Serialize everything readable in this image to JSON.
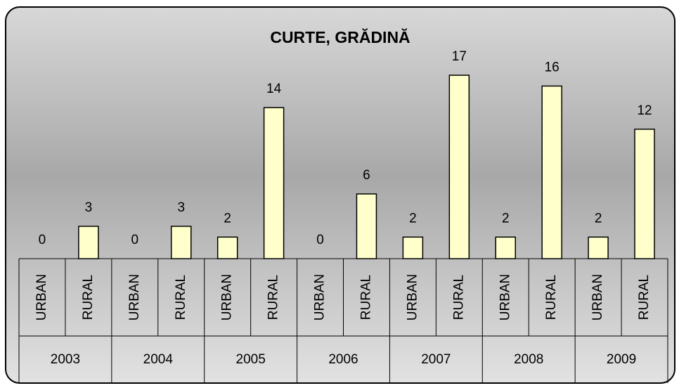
{
  "chart_data": {
    "type": "bar",
    "title": "CURTE, GRĂDINĂ",
    "categories": [
      "URBAN",
      "RURAL",
      "URBAN",
      "RURAL",
      "URBAN",
      "RURAL",
      "URBAN",
      "RURAL",
      "URBAN",
      "RURAL",
      "URBAN",
      "RURAL",
      "URBAN",
      "RURAL"
    ],
    "groups": [
      "2003",
      "2004",
      "2005",
      "2006",
      "2007",
      "2008",
      "2009"
    ],
    "values": [
      0,
      3,
      0,
      3,
      2,
      14,
      0,
      6,
      2,
      17,
      2,
      16,
      2,
      12
    ],
    "color": "#ffffcc",
    "ylim": [
      0,
      20
    ]
  }
}
